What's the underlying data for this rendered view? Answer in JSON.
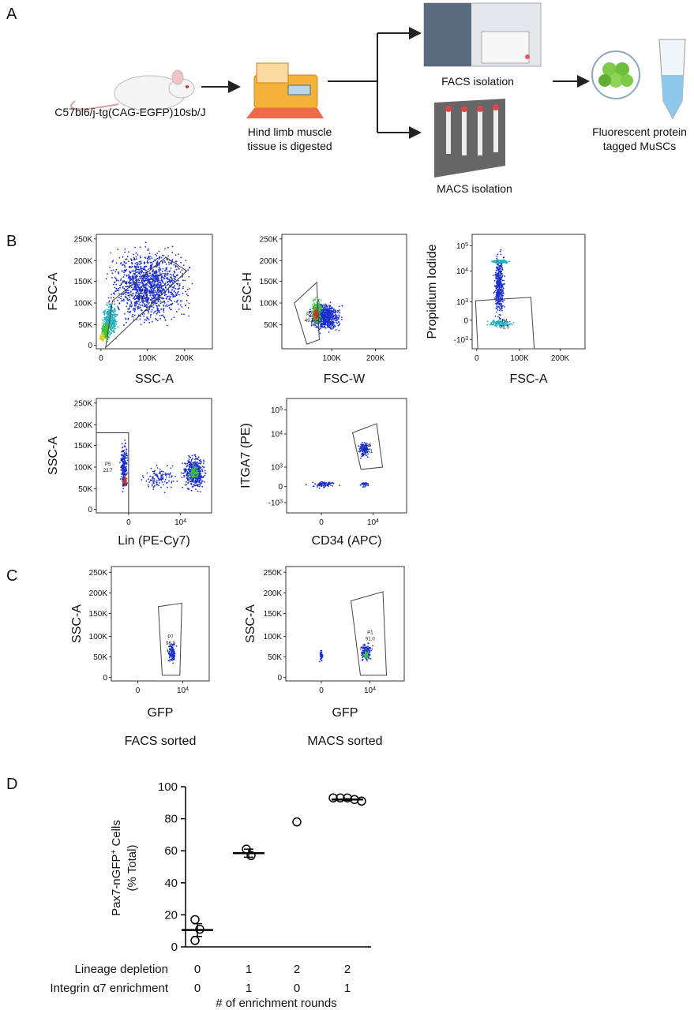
{
  "panels": {
    "a": "A",
    "b": "B",
    "c": "C",
    "d": "D"
  },
  "workflow": {
    "mouse": "C57bl6/j-tg(CAG-EGFP)10sb/J",
    "digest": [
      "Hind limb muscle",
      "tissue is digested"
    ],
    "facs": "FACS isolation",
    "macs": "MACS isolation",
    "result": [
      "Fluorescent protein",
      "tagged MuSCs"
    ]
  },
  "flow_plots": [
    {
      "x_label": "SSC-A",
      "y_label": "FSC-A",
      "xticks": [
        "0",
        "100K",
        "200K"
      ],
      "yticks": [
        "0",
        "50K",
        "100K",
        "150K",
        "200K",
        "250K"
      ],
      "gate": [
        "P1",
        "21.7"
      ]
    },
    {
      "x_label": "FSC-W",
      "y_label": "FSC-H",
      "xticks": [
        "100K",
        "200K"
      ],
      "yticks": [
        "50K",
        "100K",
        "150K",
        "200K",
        "250K"
      ],
      "gate": [
        "P2",
        "49.7"
      ]
    },
    {
      "x_label": "FSC-A",
      "y_label": "Propidium Iodide",
      "xticks": [
        "0",
        "100K",
        "200K"
      ],
      "yticks": [
        {
          "base": "-10",
          "exp": "3"
        },
        "0",
        {
          "base": "10",
          "exp": "3"
        },
        {
          "base": "10",
          "exp": "4"
        },
        {
          "base": "10",
          "exp": "5"
        }
      ],
      "gate": [
        "P4",
        "71.0"
      ]
    },
    {
      "x_label": "Lin (PE-Cy7)",
      "y_label": "SSC-A",
      "xticks": [
        "0",
        {
          "base": "10",
          "exp": "4"
        }
      ],
      "yticks": [
        "0",
        "50K",
        "100K",
        "150K",
        "200K",
        "250K"
      ],
      "gate": [
        "P5",
        "23.7"
      ]
    },
    {
      "x_label": "CD34 (APC)",
      "y_label": "ITGA7 (PE)",
      "xticks": [
        "0",
        {
          "base": "10",
          "exp": "4"
        }
      ],
      "yticks": [
        {
          "base": "-10",
          "exp": "3"
        },
        "0",
        {
          "base": "10",
          "exp": "3"
        },
        {
          "base": "10",
          "exp": "4"
        },
        {
          "base": "10",
          "exp": "5"
        }
      ],
      "gate": [
        "P6",
        "17.1"
      ]
    },
    {
      "x_label": "GFP",
      "y_label": "SSC-A",
      "xticks": [
        "0",
        {
          "base": "10",
          "exp": "4"
        }
      ],
      "yticks": [
        "0",
        "50K",
        "100K",
        "150K",
        "200K",
        "250K"
      ],
      "gate": [
        "P7",
        "98.9"
      ]
    },
    {
      "x_label": "GFP",
      "y_label": "SSC-A",
      "xticks": [
        "0",
        {
          "base": "10",
          "exp": "4"
        }
      ],
      "yticks": [
        "0",
        "50K",
        "100K",
        "150K",
        "200K",
        "250K"
      ],
      "gate": [
        "P1",
        "91.0"
      ]
    }
  ],
  "sorted_labels": [
    "FACS sorted",
    "MACS sorted"
  ],
  "chart_data": {
    "type": "dot",
    "ylabel": [
      "Pax7-nGFP",
      "+",
      " Cells"
    ],
    "ylabel2": "(% Total)",
    "ylim": [
      0,
      100
    ],
    "yticks": [
      0,
      20,
      40,
      60,
      80,
      100
    ],
    "groups": [
      {
        "values": [
          17,
          11,
          4
        ],
        "mean": 10.5,
        "error": 4
      },
      {
        "values": [
          61,
          57
        ],
        "mean": 58.5,
        "error": 2.5
      },
      {
        "values": [
          78
        ]
      },
      {
        "values": [
          93,
          93,
          93,
          92,
          91
        ],
        "mean": 92,
        "error": 0.5
      }
    ],
    "rows": [
      {
        "name": "Lineage depletion",
        "values": [
          0,
          1,
          2,
          2
        ]
      },
      {
        "name": "Integrin α7 enrichment",
        "values": [
          0,
          1,
          0,
          1
        ]
      }
    ],
    "xlabel": "# of enrichment rounds",
    "color": "#000000"
  }
}
